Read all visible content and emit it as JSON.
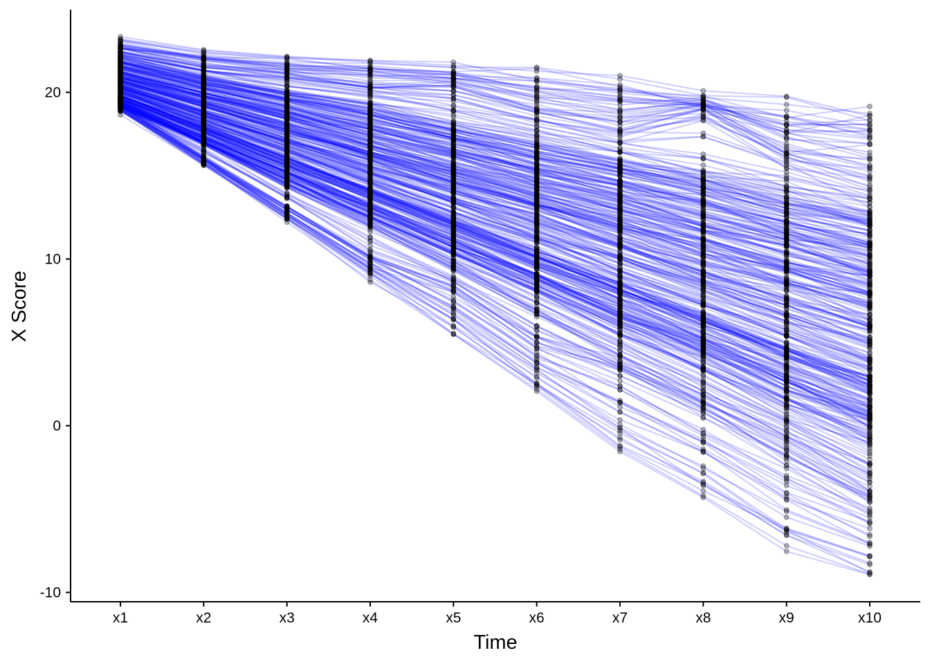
{
  "chart_data": {
    "type": "line",
    "subtype": "spaghetti plot with points",
    "title": "",
    "xlabel": "Time",
    "ylabel": "X Score",
    "categories": [
      "x1",
      "x2",
      "x3",
      "x4",
      "x5",
      "x6",
      "x7",
      "x8",
      "x9",
      "x10"
    ],
    "ylim": [
      -10.5,
      25
    ],
    "yticks": [
      -10,
      0,
      10,
      20
    ],
    "ytick_labels": [
      "-10",
      "0",
      "10",
      "20"
    ],
    "grid": false,
    "legend": "none",
    "line_color": "#0000ff",
    "point_color": "#000000",
    "representative_series": [
      {
        "values": [
          23.2,
          22.5,
          22.1,
          21.8,
          21.5,
          21.5,
          20.8,
          19.8,
          19.7,
          18.3
        ]
      },
      {
        "values": [
          22.8,
          22.0,
          21.6,
          21.4,
          21.2,
          20.1,
          19.6,
          19.3,
          18.0,
          18.1
        ]
      },
      {
        "values": [
          22.4,
          21.5,
          21.0,
          20.3,
          20.1,
          18.8,
          17.8,
          19.0,
          16.3,
          15.0
        ]
      },
      {
        "values": [
          22.1,
          21.0,
          20.1,
          19.3,
          18.3,
          17.4,
          16.4,
          15.3,
          14.4,
          13.4
        ]
      },
      {
        "values": [
          21.8,
          20.6,
          19.7,
          18.7,
          17.6,
          16.5,
          15.4,
          14.4,
          13.2,
          12.3
        ]
      },
      {
        "values": [
          21.5,
          20.3,
          19.2,
          18.1,
          16.9,
          15.7,
          14.6,
          13.4,
          12.2,
          11.0
        ]
      },
      {
        "values": [
          21.2,
          20.0,
          18.8,
          17.6,
          16.3,
          15.1,
          13.9,
          12.6,
          11.4,
          10.1
        ]
      },
      {
        "values": [
          21.0,
          19.7,
          18.4,
          17.0,
          15.7,
          14.4,
          13.1,
          11.7,
          10.4,
          9.1
        ]
      },
      {
        "values": [
          20.8,
          19.4,
          18.0,
          16.6,
          15.2,
          13.8,
          12.4,
          11.0,
          9.6,
          8.2
        ]
      },
      {
        "values": [
          20.6,
          19.1,
          17.6,
          16.1,
          14.6,
          13.1,
          11.6,
          10.1,
          8.6,
          7.1
        ]
      },
      {
        "values": [
          20.4,
          18.8,
          17.2,
          15.6,
          14.0,
          12.4,
          10.8,
          9.2,
          7.6,
          6.0
        ]
      },
      {
        "values": [
          20.2,
          18.5,
          16.8,
          15.1,
          13.4,
          11.7,
          10.0,
          8.3,
          6.6,
          4.9
        ]
      },
      {
        "values": [
          20.0,
          18.2,
          16.4,
          14.6,
          12.8,
          11.0,
          9.2,
          7.4,
          5.6,
          3.8
        ]
      },
      {
        "values": [
          19.8,
          17.9,
          16.0,
          14.1,
          12.2,
          10.3,
          8.4,
          6.5,
          4.6,
          2.7
        ]
      },
      {
        "values": [
          19.6,
          17.6,
          15.6,
          13.6,
          11.6,
          9.6,
          7.6,
          5.6,
          3.6,
          1.6
        ]
      },
      {
        "values": [
          19.4,
          17.3,
          15.2,
          13.1,
          11.0,
          8.9,
          6.8,
          4.7,
          2.6,
          0.5
        ]
      },
      {
        "values": [
          19.2,
          17.0,
          14.8,
          12.6,
          10.4,
          8.2,
          6.0,
          3.8,
          1.6,
          -0.6
        ]
      },
      {
        "values": [
          19.4,
          16.9,
          14.3,
          11.8,
          9.3,
          6.7,
          4.2,
          1.8,
          -0.8,
          -3.2
        ]
      },
      {
        "values": [
          19.1,
          16.0,
          13.0,
          10.0,
          8.4,
          5.0,
          3.4,
          1.0,
          -1.5,
          -4.3
        ]
      },
      {
        "values": [
          19.0,
          15.8,
          12.4,
          9.0,
          5.5,
          2.2,
          -1.4,
          -4.2,
          -7.2,
          -8.9
        ]
      }
    ]
  }
}
